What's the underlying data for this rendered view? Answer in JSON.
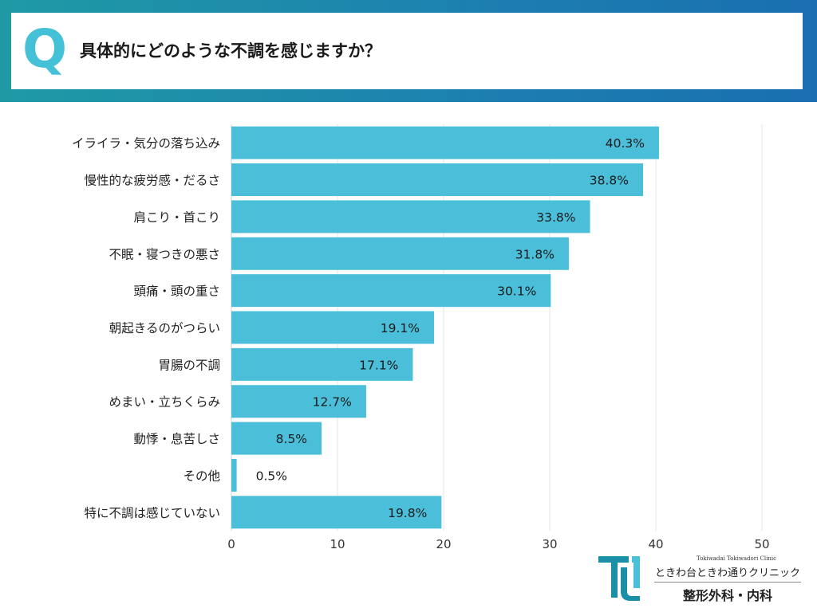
{
  "header": {
    "q_mark": "Q",
    "question": "具体的にどのような不調を感じますか？"
  },
  "chart_data": {
    "type": "bar",
    "orientation": "horizontal",
    "categories": [
      "イライラ・気分の落ち込み",
      "慢性的な疲労感・だるさ",
      "肩こり・首こり",
      "不眠・寝つきの悪さ",
      "頭痛・頭の重さ",
      "朝起きるのがつらい",
      "胃腸の不調",
      "めまい・立ちくらみ",
      "動悸・息苦しさ",
      "その他",
      "特に不調は感じていない"
    ],
    "values": [
      40.3,
      38.8,
      33.8,
      31.8,
      30.1,
      19.1,
      17.1,
      12.7,
      8.5,
      0.5,
      19.8
    ],
    "value_labels": [
      "40.3%",
      "38.8%",
      "33.8%",
      "31.8%",
      "30.1%",
      "19.1%",
      "17.1%",
      "12.7%",
      "8.5%",
      "0.5%",
      "19.8%"
    ],
    "xlim": [
      0,
      50
    ],
    "xticks": [
      "0",
      "10",
      "20",
      "30",
      "40",
      "50"
    ],
    "grid": true,
    "bar_color": "#4bbfd9",
    "label_color": "#1a1a1a"
  },
  "logo": {
    "sub": "Tokiwadai Tokiwadori Clinic",
    "name": "ときわ台ときわ通りクリニック",
    "dept": "整形外科・内科",
    "mark_color": "#1c8fa8"
  }
}
